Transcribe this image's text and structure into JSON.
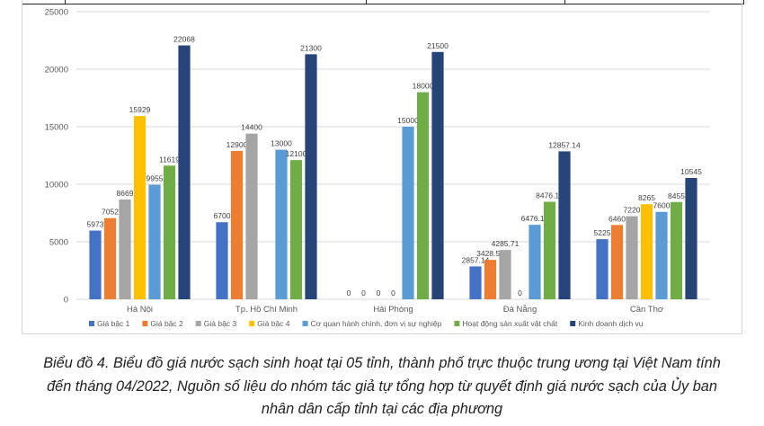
{
  "chart_data": {
    "type": "bar",
    "categories": [
      "Hà Nội",
      "Tp. Hồ Chí Minh",
      "Hải Phòng",
      "Đà Nẵng",
      "Cần Thơ"
    ],
    "series": [
      {
        "name": "Giá bậc 1",
        "color": "#4472C4",
        "values": [
          5973,
          6700,
          0,
          2857.14,
          5225
        ],
        "labels": [
          "5973",
          "6700",
          "0",
          "2857.14",
          "5225"
        ]
      },
      {
        "name": "Giá bậc 2",
        "color": "#ED7D31",
        "values": [
          7052,
          12900,
          0,
          3428.57,
          6460
        ],
        "labels": [
          "7052",
          "12900",
          "0",
          "3428.57",
          "6460"
        ]
      },
      {
        "name": "Giá bậc 3",
        "color": "#A5A5A5",
        "values": [
          8669,
          14400,
          0,
          4285.71,
          7220
        ],
        "labels": [
          "8669",
          "14400",
          "0",
          "4285.71",
          "7220"
        ]
      },
      {
        "name": "Giá bậc 4",
        "color": "#FFC000",
        "values": [
          15929,
          null,
          0,
          0,
          8265
        ],
        "labels": [
          "15929",
          "",
          "0",
          "0",
          "8265"
        ]
      },
      {
        "name": "Cơ quan hành chính, đơn vị sự nghiệp",
        "color": "#5B9BD5",
        "values": [
          9955,
          13000,
          15000,
          6476.19,
          7600
        ],
        "labels": [
          "9955",
          "13000",
          "15000",
          "6476.19",
          "7600"
        ]
      },
      {
        "name": "Hoạt động sản xuất vật chất",
        "color": "#70AD47",
        "values": [
          11619,
          12100,
          18000,
          8476.19,
          8455
        ],
        "labels": [
          "11619",
          "12100",
          "18000",
          "8476.19",
          "8455"
        ]
      },
      {
        "name": "Kinh doanh dịch vụ",
        "color": "#264478",
        "values": [
          22068,
          21300,
          21500,
          12857.14,
          10545
        ],
        "labels": [
          "22068",
          "21300",
          "21500",
          "12857.14",
          "10545"
        ]
      }
    ],
    "yticks": [
      "0",
      "5000",
      "10000",
      "15000",
      "20000",
      "25000"
    ],
    "ylim": [
      0,
      25000
    ],
    "grid": true,
    "legend_position": "bottom",
    "title": "",
    "xlabel": "",
    "ylabel": ""
  },
  "caption": {
    "line1": "Biểu đồ 4. Biểu đồ giá nước sạch sinh hoạt tại 05 tỉnh, thành phố trực thuộc trung ương tại Việt Nam tính",
    "line2": "đến tháng 04/2022, Nguồn số liệu do nhóm tác giả tự tổng hợp từ quyết định giá nước sạch của Ủy ban",
    "line3": "nhân dân cấp tỉnh tại các địa phương"
  }
}
